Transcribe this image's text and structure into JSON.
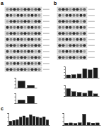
{
  "panel_labels": [
    "a",
    "b",
    "c"
  ],
  "chart_data": [
    {
      "type": "bar",
      "categories": [
        null,
        null
      ],
      "values": [
        1,
        0.35
      ],
      "color": "#1a1a1a",
      "ylim": [
        0,
        1.5
      ],
      "yticks": [
        0,
        0.5,
        1,
        1.5
      ],
      "grid": false,
      "tick_labels": false
    },
    {
      "type": "bar",
      "categories": [
        null,
        null
      ],
      "values": [
        1,
        2.1
      ],
      "color": "#1a1a1a",
      "ylim": [
        0,
        3
      ],
      "yticks": [
        0,
        1,
        2,
        3
      ],
      "grid": false,
      "tick_labels": false
    },
    {
      "type": "bar",
      "categories": [
        null,
        null,
        null,
        null,
        null,
        null
      ],
      "values": [
        1,
        1.1,
        1.3,
        3.2,
        2.8,
        3.5
      ],
      "color": "#1a1a1a",
      "ylim": [
        0,
        4
      ],
      "yticks": [
        0,
        1,
        2,
        3,
        4
      ],
      "grid": false,
      "tick_labels": false
    },
    {
      "type": "bar",
      "categories": [
        null,
        null,
        null,
        null,
        null,
        null
      ],
      "values": [
        1,
        0.6,
        0.5,
        0.4,
        0.7,
        0.3
      ],
      "color": "#1a1a1a",
      "ylim": [
        0,
        1.5
      ],
      "yticks": [
        0,
        0.5,
        1,
        1.5
      ],
      "grid": false,
      "tick_labels": false
    },
    {
      "type": "bar",
      "categories": [
        null,
        null,
        null,
        null,
        null,
        null,
        null,
        null,
        null,
        null,
        null,
        null
      ],
      "values": [
        1,
        1.2,
        1.4,
        2.0,
        2.3,
        1.9,
        2.6,
        2.2,
        2.0,
        1.8,
        2.1,
        1.3
      ],
      "color": "#1a1a1a",
      "ylim": [
        0,
        3
      ],
      "yticks": [
        0,
        1,
        2,
        3
      ],
      "grid": false,
      "tick_labels": false
    },
    {
      "type": "bar",
      "categories": [
        null,
        null,
        null,
        null,
        null,
        null,
        null,
        null
      ],
      "values": [
        1,
        1.1,
        0.9,
        1.2,
        5.5,
        1.3,
        1.0,
        1.1
      ],
      "color": "#1a1a1a",
      "ylim": [
        0,
        6
      ],
      "yticks": [
        0,
        2,
        4,
        6
      ],
      "grid": false,
      "tick_labels": false
    }
  ]
}
